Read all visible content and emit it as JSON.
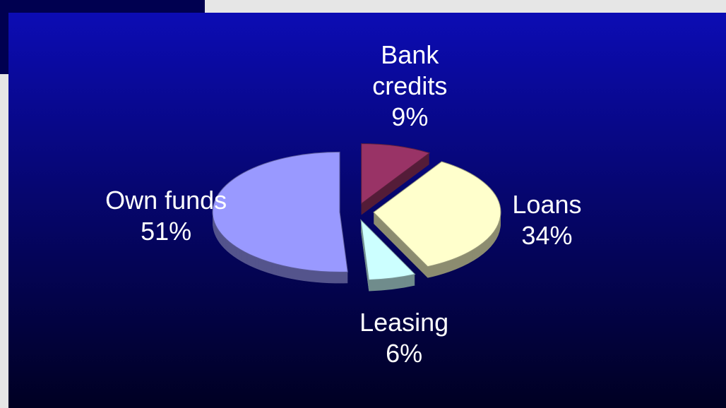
{
  "chart_data": {
    "type": "pie",
    "categories": [
      "Bank credits",
      "Loans",
      "Leasing",
      "Own funds"
    ],
    "values": [
      9,
      34,
      6,
      51
    ],
    "value_labels": [
      "9%",
      "34%",
      "6%",
      "51%"
    ],
    "colors": [
      "#993366",
      "#ffffcc",
      "#ccffff",
      "#9999ff"
    ],
    "exploded": true,
    "three_d": true
  }
}
